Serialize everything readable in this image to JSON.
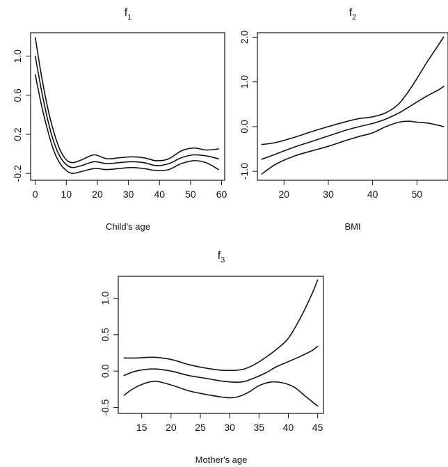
{
  "chart_data": [
    {
      "type": "line",
      "title": "f",
      "title_subscript": "1",
      "xlabel": "Child's age",
      "ylabel": "",
      "xlim": [
        -1.5,
        61
      ],
      "ylim": [
        -0.27,
        1.24
      ],
      "xticks": [
        0,
        10,
        20,
        30,
        40,
        50,
        60
      ],
      "yticks": [
        -0.2,
        0.2,
        0.6,
        1.0
      ],
      "ytick_labels": [
        "-0.2",
        "0.2",
        "0.6",
        "1.0"
      ],
      "grid": false,
      "series": [
        {
          "x": [
            0,
            2,
            4,
            6,
            8,
            10,
            12,
            15,
            19,
            23,
            27,
            31,
            35,
            39,
            43,
            47,
            51,
            55,
            59
          ],
          "y": [
            1.19,
            0.8,
            0.47,
            0.22,
            0.04,
            -0.06,
            -0.09,
            -0.06,
            -0.01,
            -0.05,
            -0.04,
            -0.03,
            -0.04,
            -0.07,
            -0.05,
            0.03,
            0.06,
            0.04,
            0.05
          ]
        },
        {
          "x": [
            0,
            2,
            4,
            6,
            8,
            10,
            12,
            15,
            19,
            23,
            27,
            31,
            35,
            39,
            43,
            47,
            51,
            55,
            59
          ],
          "y": [
            1.0,
            0.65,
            0.35,
            0.12,
            -0.03,
            -0.11,
            -0.14,
            -0.12,
            -0.08,
            -0.1,
            -0.09,
            -0.08,
            -0.09,
            -0.12,
            -0.1,
            -0.04,
            -0.01,
            -0.02,
            -0.05
          ]
        },
        {
          "x": [
            0,
            2,
            4,
            6,
            8,
            10,
            12,
            15,
            19,
            23,
            27,
            31,
            35,
            39,
            43,
            47,
            51,
            55,
            59
          ],
          "y": [
            0.81,
            0.5,
            0.24,
            0.03,
            -0.1,
            -0.17,
            -0.2,
            -0.18,
            -0.15,
            -0.16,
            -0.15,
            -0.14,
            -0.15,
            -0.17,
            -0.16,
            -0.1,
            -0.07,
            -0.09,
            -0.16
          ]
        }
      ]
    },
    {
      "type": "line",
      "title": "f",
      "title_subscript": "2",
      "xlabel": "BMI",
      "ylabel": "",
      "xlim": [
        14,
        57
      ],
      "ylim": [
        -1.2,
        2.1
      ],
      "xticks": [
        20,
        30,
        40,
        50
      ],
      "yticks": [
        -1.0,
        0.0,
        1.0,
        2.0
      ],
      "ytick_labels": [
        "-1.0",
        "0.0",
        "1.0",
        "2.0"
      ],
      "grid": false,
      "series": [
        {
          "x": [
            15,
            18,
            22,
            26,
            30,
            34,
            37,
            40,
            43,
            46,
            49,
            52,
            55,
            56
          ],
          "y": [
            -0.4,
            -0.36,
            -0.25,
            -0.12,
            0.0,
            0.11,
            0.18,
            0.22,
            0.31,
            0.52,
            0.92,
            1.4,
            1.85,
            2.0
          ]
        },
        {
          "x": [
            15,
            18,
            22,
            26,
            30,
            34,
            37,
            40,
            43,
            46,
            49,
            52,
            55,
            56
          ],
          "y": [
            -0.73,
            -0.62,
            -0.47,
            -0.34,
            -0.21,
            -0.08,
            0.0,
            0.07,
            0.17,
            0.31,
            0.49,
            0.67,
            0.83,
            0.9
          ]
        },
        {
          "x": [
            15,
            18,
            22,
            26,
            30,
            34,
            37,
            40,
            43,
            46,
            48,
            50,
            53,
            56
          ],
          "y": [
            -1.06,
            -0.85,
            -0.67,
            -0.55,
            -0.44,
            -0.31,
            -0.22,
            -0.14,
            0.0,
            0.1,
            0.12,
            0.1,
            0.07,
            0.0
          ]
        }
      ]
    },
    {
      "type": "line",
      "title": "f",
      "title_subscript": "3",
      "xlabel": "Mother's age",
      "ylabel": "",
      "xlim": [
        11,
        46
      ],
      "ylim": [
        -0.58,
        1.3
      ],
      "xticks": [
        15,
        20,
        25,
        30,
        35,
        40,
        45
      ],
      "yticks": [
        -0.5,
        0.0,
        0.5,
        1.0
      ],
      "ytick_labels": [
        "-0.5",
        "0.0",
        "0.5",
        "1.0"
      ],
      "grid": false,
      "series": [
        {
          "x": [
            12,
            14,
            17,
            20,
            23,
            26,
            29,
            32,
            34,
            36,
            38,
            40,
            42,
            44,
            45
          ],
          "y": [
            0.18,
            0.18,
            0.19,
            0.16,
            0.09,
            0.04,
            0.01,
            0.02,
            0.08,
            0.18,
            0.3,
            0.45,
            0.72,
            1.05,
            1.25
          ]
        },
        {
          "x": [
            12,
            14,
            17,
            20,
            23,
            26,
            29,
            32,
            34,
            36,
            38,
            40,
            42,
            44,
            45
          ],
          "y": [
            -0.06,
            0.0,
            0.03,
            0.0,
            -0.06,
            -0.1,
            -0.14,
            -0.15,
            -0.1,
            -0.03,
            0.06,
            0.13,
            0.2,
            0.28,
            0.34
          ]
        },
        {
          "x": [
            12,
            14,
            17,
            20,
            23,
            26,
            29,
            31,
            33,
            35,
            37,
            39,
            41,
            43,
            45
          ],
          "y": [
            -0.33,
            -0.22,
            -0.14,
            -0.19,
            -0.27,
            -0.32,
            -0.36,
            -0.36,
            -0.3,
            -0.2,
            -0.15,
            -0.16,
            -0.22,
            -0.35,
            -0.48
          ]
        }
      ]
    }
  ]
}
